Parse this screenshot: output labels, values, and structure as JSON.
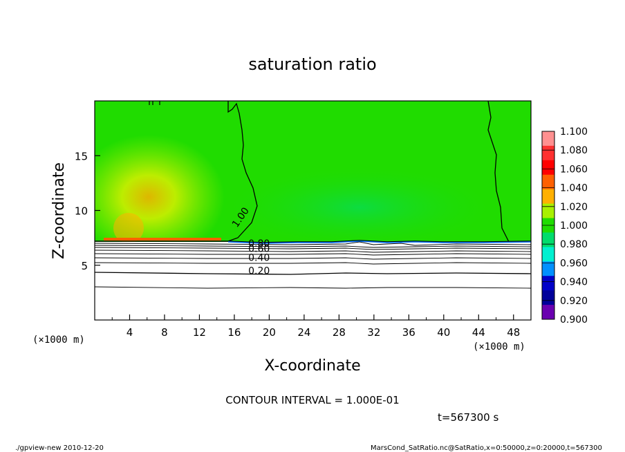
{
  "chart_data": {
    "type": "heatmap",
    "title": "saturation ratio",
    "xlabel": "X-coordinate",
    "ylabel": "Z-coordinate",
    "x_unit": "(×1000 m)",
    "z_unit": "(×1000 m)",
    "xlim": [
      0,
      50
    ],
    "ylim": [
      0,
      20
    ],
    "xticks": [
      4,
      8,
      12,
      16,
      20,
      24,
      28,
      32,
      36,
      40,
      44,
      48
    ],
    "yticks": [
      5,
      10,
      15
    ],
    "colorbar": {
      "levels": [
        "1.100",
        "1.080",
        "1.060",
        "1.040",
        "1.020",
        "1.000",
        "0.980",
        "0.960",
        "0.940",
        "0.920",
        "0.900"
      ],
      "colors": [
        "#ff9090",
        "#ff3030",
        "#ff0000",
        "#ff6000",
        "#ffb000",
        "#a8f000",
        "#20dc00",
        "#00dc6c",
        "#00f0d0",
        "#0090ff",
        "#0000c8",
        "#00009a",
        "#6a00b0"
      ]
    },
    "contour_labels": [
      {
        "value": "1.00",
        "x": 16.3,
        "z": 8.4
      },
      {
        "value": "0.80",
        "x": 17.6,
        "z": 6.7
      },
      {
        "value": "0.60",
        "x": 17.6,
        "z": 6.2
      },
      {
        "value": "0.40",
        "x": 17.6,
        "z": 5.4
      },
      {
        "value": "0.20",
        "x": 17.6,
        "z": 4.2
      }
    ],
    "contour_interval": "CONTOUR INTERVAL = 1.000E-01",
    "time": "t=567300 s"
  },
  "footer": {
    "left": "./gpview-new  2010-12-20",
    "right": "MarsCond_SatRatio.nc@SatRatio,x=0:50000,z=0:20000,t=567300"
  }
}
